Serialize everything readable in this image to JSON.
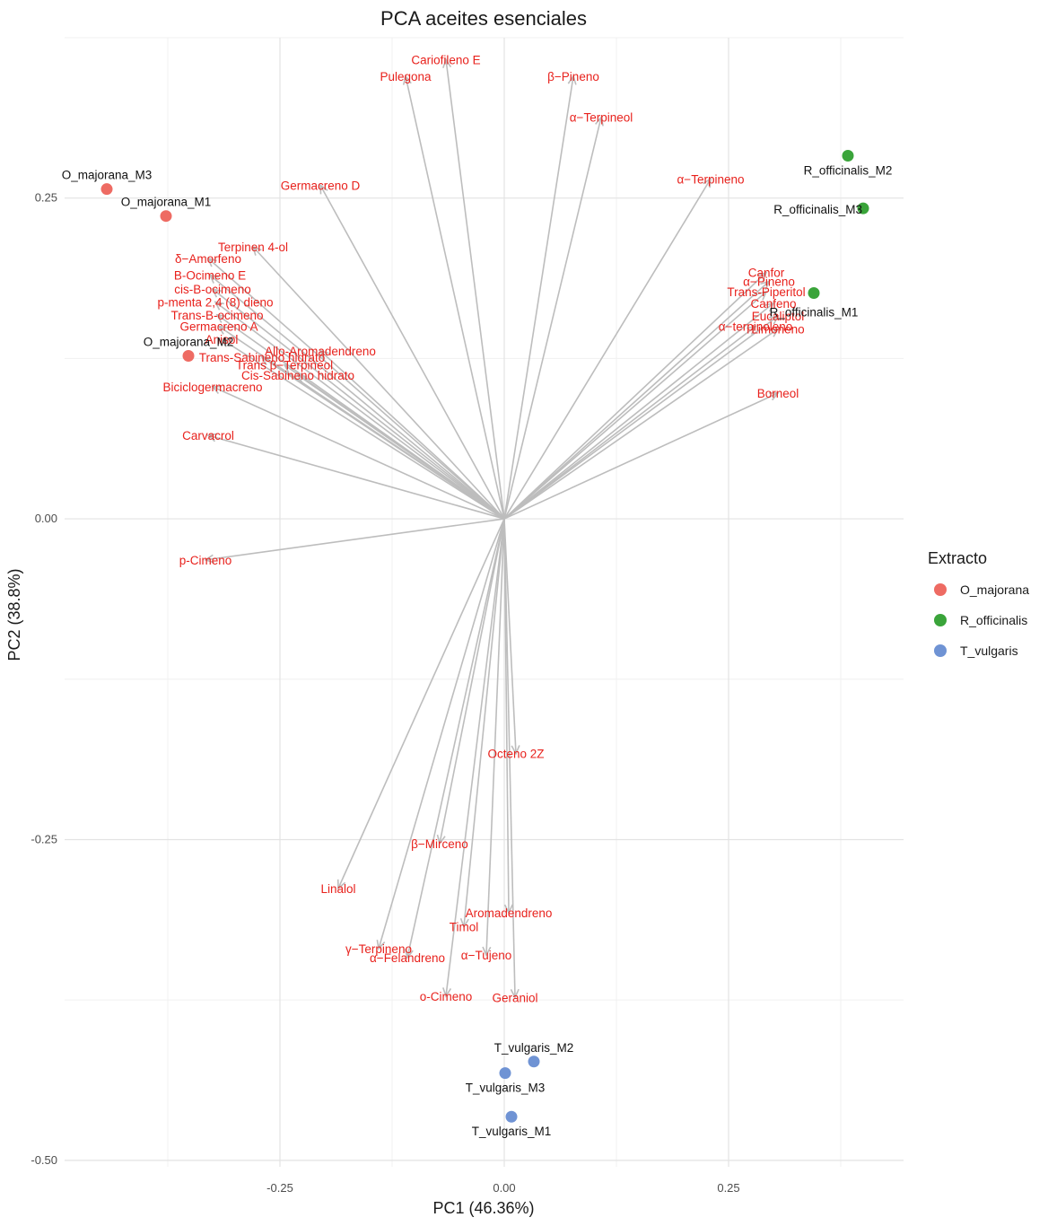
{
  "chart_data": {
    "type": "scatter",
    "subtype": "pca-biplot",
    "title": "PCA aceites esenciales",
    "xlabel": "PC1 (46.36%)",
    "ylabel": "PC2 (38.8%)",
    "xlim": [
      -0.49,
      0.445
    ],
    "ylim": [
      -0.505,
      0.375
    ],
    "x_ticks": [
      -0.25,
      0.0,
      0.25
    ],
    "x_tick_labels": [
      "-0.25",
      "0.00",
      "0.25"
    ],
    "y_ticks": [
      -0.5,
      -0.25,
      0.0,
      0.25
    ],
    "y_tick_labels": [
      "-0.50",
      "-0.25",
      "0.00",
      "0.25"
    ],
    "grid": true,
    "legend": {
      "title": "Extracto",
      "position": "right",
      "items": [
        {
          "name": "O_majorana",
          "color": "#ee6b63"
        },
        {
          "name": "R_officinalis",
          "color": "#3aa43a"
        },
        {
          "name": "T_vulgaris",
          "color": "#6f93d4"
        }
      ]
    },
    "arrow_color": "#bdbdbd",
    "variable_label_color": "#e8211c",
    "observations": [
      {
        "label": "O_majorana_M3",
        "group": "O_majorana",
        "x": -0.443,
        "y": 0.257
      },
      {
        "label": "O_majorana_M1",
        "group": "O_majorana",
        "x": -0.377,
        "y": 0.236
      },
      {
        "label": "O_majorana_M2",
        "group": "O_majorana",
        "x": -0.352,
        "y": 0.127
      },
      {
        "label": "R_officinalis_M2",
        "group": "R_officinalis",
        "x": 0.383,
        "y": 0.283
      },
      {
        "label": "R_officinalis_M3",
        "group": "R_officinalis",
        "x": 0.4,
        "y": 0.242
      },
      {
        "label": "R_officinalis_M1",
        "group": "R_officinalis",
        "x": 0.345,
        "y": 0.176
      },
      {
        "label": "T_vulgaris_M2",
        "group": "T_vulgaris",
        "x": 0.033,
        "y": -0.423
      },
      {
        "label": "T_vulgaris_M3",
        "group": "T_vulgaris",
        "x": 0.001,
        "y": -0.432
      },
      {
        "label": "T_vulgaris_M1",
        "group": "T_vulgaris",
        "x": 0.008,
        "y": -0.466
      }
    ],
    "variables": [
      {
        "label": "Cariofileno E",
        "x": -0.065,
        "y": 0.358
      },
      {
        "label": "Pulegona",
        "x": -0.11,
        "y": 0.345
      },
      {
        "label": "β−Pineno",
        "x": 0.077,
        "y": 0.345
      },
      {
        "label": "α−Terpineol",
        "x": 0.108,
        "y": 0.313
      },
      {
        "label": "α−Terpineno",
        "x": 0.23,
        "y": 0.265
      },
      {
        "label": "Germacreno D",
        "x": -0.205,
        "y": 0.26
      },
      {
        "label": "Terpinen 4-ol",
        "x": -0.28,
        "y": 0.212
      },
      {
        "label": "Canfor",
        "x": 0.292,
        "y": 0.192
      },
      {
        "label": "α−Pineno",
        "x": 0.295,
        "y": 0.185
      },
      {
        "label": "Trans-Piperitol",
        "x": 0.292,
        "y": 0.177
      },
      {
        "label": "Canfeno",
        "x": 0.3,
        "y": 0.168
      },
      {
        "label": "Eucaliptol",
        "x": 0.305,
        "y": 0.158
      },
      {
        "label": "Limoneno",
        "x": 0.305,
        "y": 0.148
      },
      {
        "label": "α−terpinoleno",
        "x": 0.28,
        "y": 0.15
      },
      {
        "label": "δ−Amorfeno",
        "x": -0.33,
        "y": 0.203
      },
      {
        "label": "B-Ocimeno E",
        "x": -0.328,
        "y": 0.19
      },
      {
        "label": "cis-B-ocimeno",
        "x": -0.325,
        "y": 0.179
      },
      {
        "label": "p-menta 2,4 (8) dieno",
        "x": -0.322,
        "y": 0.169
      },
      {
        "label": "Trans-B-ocimeno",
        "x": -0.32,
        "y": 0.159
      },
      {
        "label": "Germacreno A",
        "x": -0.318,
        "y": 0.15
      },
      {
        "label": "Anisol",
        "x": -0.315,
        "y": 0.14
      },
      {
        "label": "Trans-Sabineno hidrato",
        "x": -0.27,
        "y": 0.126
      },
      {
        "label": "Allo-Aromadendreno",
        "x": -0.205,
        "y": 0.131
      },
      {
        "label": "Trans β−Terpineol",
        "x": -0.245,
        "y": 0.12
      },
      {
        "label": "Cis-Sabineno hidrato",
        "x": -0.23,
        "y": 0.112
      },
      {
        "label": "Biciclogermacreno",
        "x": -0.325,
        "y": 0.103
      },
      {
        "label": "Carvacrol",
        "x": -0.33,
        "y": 0.065
      },
      {
        "label": "Borneol",
        "x": 0.305,
        "y": 0.098
      },
      {
        "label": "p-Cimeno",
        "x": -0.333,
        "y": -0.032
      },
      {
        "label": "Octeno 2Z",
        "x": 0.013,
        "y": -0.183
      },
      {
        "label": "β−Mirceno",
        "x": -0.072,
        "y": -0.253
      },
      {
        "label": "Linalol",
        "x": -0.185,
        "y": -0.288
      },
      {
        "label": "Aromadendreno",
        "x": 0.005,
        "y": -0.307
      },
      {
        "label": "Timol",
        "x": -0.045,
        "y": -0.318
      },
      {
        "label": "γ−Terpineno",
        "x": -0.14,
        "y": -0.335
      },
      {
        "label": "α−Felandreno",
        "x": -0.108,
        "y": -0.342
      },
      {
        "label": "α−Tujeno",
        "x": -0.02,
        "y": -0.34
      },
      {
        "label": "o-Cimeno",
        "x": -0.065,
        "y": -0.372
      },
      {
        "label": "Geraniol",
        "x": 0.012,
        "y": -0.373
      }
    ]
  }
}
